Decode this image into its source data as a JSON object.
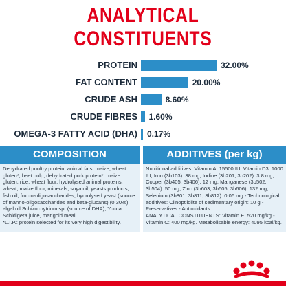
{
  "title": "ANALYTICAL CONSTITUENTS",
  "chart_data": {
    "type": "bar",
    "categories": [
      "PROTEIN",
      "FAT CONTENT",
      "CRUDE ASH",
      "CRUDE FIBRES",
      "OMEGA-3 FATTY ACID (DHA)"
    ],
    "values": [
      32.0,
      20.0,
      8.6,
      1.6,
      0.17
    ],
    "value_labels": [
      "32.00%",
      "20.00%",
      "8.60%",
      "1.60%",
      "0.17%"
    ],
    "xlim": [
      0,
      32
    ]
  },
  "composition": {
    "heading": "COMPOSITION",
    "text": "Dehydrated poultry protein, animal fats, maize, wheat gluten*, beet pulp, dehydrated pork protein*, maize gluten, rice, wheat flour, hydrolysed animal proteins, wheat, maize flour, minerals, soya oil, yeasts products, fish oil, fructo-oligosaccharides, hydrolysed yeast (source of manno-oligosaccharides and beta-glucans) (0.30%), algal oil Schizochytrium sp. (source of DHA), Yucca Schidigera juice, marigold meal.",
    "note": "*L.I.P.: protein selected for its very high digestibility."
  },
  "additives": {
    "heading": "ADDITIVES (per kg)",
    "text": "Nutritional additives: Vitamin A: 15500 IU, Vitamin D3: 1000 IU, Iron (3b103): 38 mg, Iodine (3b201, 3b202): 3.8 mg, Copper (3b405, 3b406): 12 mg, Manganese (3b502, 3b504): 50 mg, Zinc (3b603, 3b605, 3b606): 132 mg, Selenium (3b801, 3b811, 3b812): 0.06 mg - Technological additives: Clinoptilolite of sedimentary origin: 10 g - Preservatives - Antioxidants.",
    "text2": "ANALYTICAL CONSTITUENTS: Vitamin E: 520 mg/kg - Vitamin C: 400 mg/kg. Metabolisable energy: 4095 kcal/kg."
  },
  "colors": {
    "accent": "#e2001a",
    "bar": "#2c8ec8",
    "panel": "#e6f0f7",
    "text": "#1b2a3a"
  },
  "logo_icon": "royal-canin-crown-logo"
}
